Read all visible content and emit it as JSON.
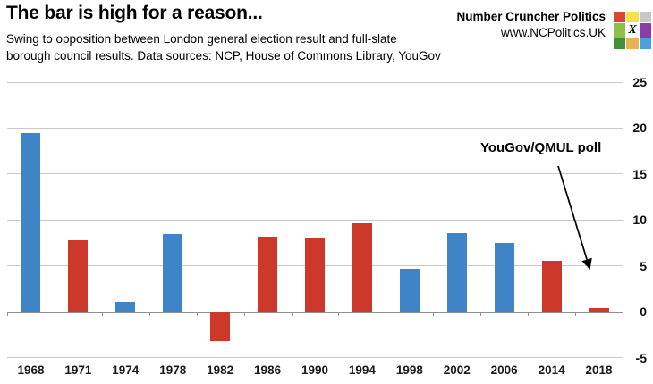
{
  "header": {
    "title": "The bar is high for a reason...",
    "subtitle_line1": "Swing to opposition between London general election result and full-slate",
    "subtitle_line2": "borough council results. Data sources: NCP, House of Commons Library, YouGov"
  },
  "brand": {
    "name": "Number Cruncher Politics",
    "url": "www.NCPolitics.UK",
    "logo_grid_colors": [
      "#d6492e",
      "#f2e24c",
      "#c8c8c8",
      "#8fbf4a",
      "#fdfdfd",
      "#8a3da0",
      "#3f8f3c",
      "#e8b254",
      "#4aa0dc"
    ],
    "logo_center_glyph": "X"
  },
  "annotation": {
    "label": "YouGov/QMUL poll"
  },
  "chart_data": {
    "type": "bar",
    "title": "The bar is high for a reason...",
    "subtitle": "Swing to opposition between London general election result and full-slate borough council results. Data sources: NCP, House of Commons Library, YouGov",
    "categories": [
      "1968",
      "1971",
      "1974",
      "1978",
      "1982",
      "1986",
      "1990",
      "1994",
      "1998",
      "2002",
      "2006",
      "2014",
      "2018"
    ],
    "values": [
      19.5,
      7.8,
      1.1,
      8.5,
      -3.2,
      8.2,
      8.1,
      9.6,
      4.7,
      8.6,
      7.5,
      5.6,
      0.4
    ],
    "bar_colors": [
      "#3d85c6",
      "#cc392b",
      "#3d85c6",
      "#3d85c6",
      "#cc392b",
      "#cc392b",
      "#cc392b",
      "#cc392b",
      "#3d85c6",
      "#3d85c6",
      "#3d85c6",
      "#cc392b",
      "#cc392b"
    ],
    "xlabel": "",
    "ylabel": "",
    "ylim": [
      -5,
      25
    ],
    "yticks": [
      25,
      20,
      15,
      10,
      5,
      0,
      -5
    ],
    "y_axis_side": "right",
    "grid": true,
    "legend": false,
    "annotation": {
      "text": "YouGov/QMUL poll",
      "points_to": "2018"
    }
  },
  "colors": {
    "bar_blue": "#3d85c6",
    "bar_red": "#cc392b",
    "gridline": "#c9c9c9",
    "axis": "#8f8f8f",
    "text": "#000000"
  }
}
